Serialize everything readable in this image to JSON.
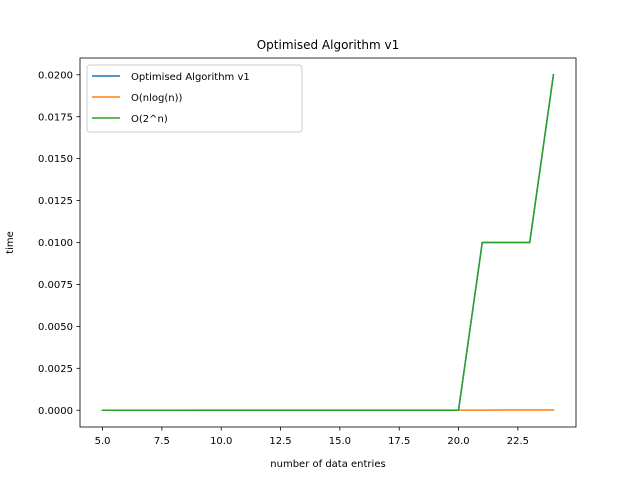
{
  "chart_data": {
    "type": "line",
    "title": "Optimised Algorithm v1",
    "xlabel": "number of data entries",
    "ylabel": "time",
    "xlim": [
      4.05,
      24.95
    ],
    "ylim": [
      -0.001,
      0.021
    ],
    "x": [
      5,
      6,
      7,
      8,
      9,
      10,
      11,
      12,
      13,
      14,
      15,
      16,
      17,
      18,
      19,
      20,
      21,
      22,
      23,
      24
    ],
    "xticks": [
      {
        "value": 5,
        "label": "5.0"
      },
      {
        "value": 7.5,
        "label": "7.5"
      },
      {
        "value": 10,
        "label": "10.0"
      },
      {
        "value": 12.5,
        "label": "12.5"
      },
      {
        "value": 15,
        "label": "15.0"
      },
      {
        "value": 17.5,
        "label": "17.5"
      },
      {
        "value": 20,
        "label": "20.0"
      },
      {
        "value": 22.5,
        "label": "22.5"
      }
    ],
    "yticks": [
      {
        "value": 0.0,
        "label": "0.0000"
      },
      {
        "value": 0.0025,
        "label": "0.0025"
      },
      {
        "value": 0.005,
        "label": "0.0050"
      },
      {
        "value": 0.0075,
        "label": "0.0075"
      },
      {
        "value": 0.01,
        "label": "0.0100"
      },
      {
        "value": 0.0125,
        "label": "0.0125"
      },
      {
        "value": 0.015,
        "label": "0.0150"
      },
      {
        "value": 0.0175,
        "label": "0.0175"
      },
      {
        "value": 0.02,
        "label": "0.0200"
      }
    ],
    "grid": false,
    "legend_position": "top-left",
    "series": [
      {
        "name": "Optimised Algorithm v1",
        "color": "#1f77b4",
        "values": [
          0,
          0,
          0,
          0,
          0,
          0,
          0,
          0,
          0,
          0,
          0,
          0,
          0,
          0,
          0,
          0,
          0.01,
          0.01,
          0.01,
          0.02
        ]
      },
      {
        "name": "O(nlog(n))",
        "color": "#ff7f0e",
        "values": [
          1.2e-06,
          1.6e-06,
          2e-06,
          2.4e-06,
          2.9e-06,
          3.3e-06,
          3.8e-06,
          4.3e-06,
          4.8e-06,
          5.3e-06,
          5.9e-06,
          6.4e-06,
          6.9e-06,
          7.5e-06,
          8.1e-06,
          8.6e-06,
          9.2e-06,
          9.8e-06,
          1.04e-05,
          1.1e-05
        ]
      },
      {
        "name": "O(2^n)",
        "color": "#2ca02c",
        "values": [
          0,
          0,
          0,
          0,
          0,
          0,
          0,
          0,
          0,
          0,
          0,
          0,
          0,
          0,
          0,
          0,
          0.01,
          0.01,
          0.01,
          0.02
        ]
      }
    ]
  }
}
